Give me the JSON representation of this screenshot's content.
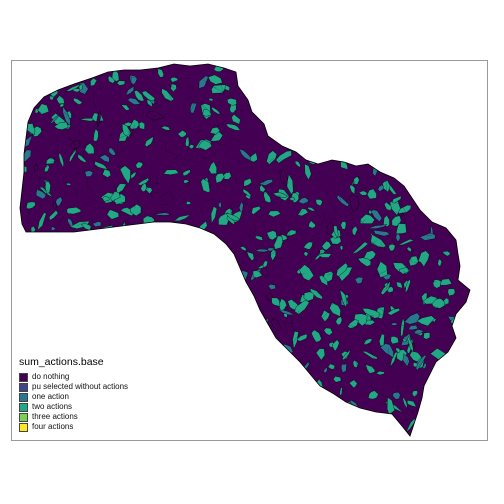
{
  "legend": {
    "title": "sum_actions.base",
    "items": [
      {
        "label": "do nothing",
        "color": "#440154"
      },
      {
        "label": "pu selected without actions",
        "color": "#414487"
      },
      {
        "label": "one action",
        "color": "#2A788E"
      },
      {
        "label": "two actions",
        "color": "#22A884"
      },
      {
        "label": "three actions",
        "color": "#7AD151"
      },
      {
        "label": "four actions",
        "color": "#FDE725"
      }
    ]
  },
  "colors": {
    "background": "#FFFFFF",
    "frame": "#9A9A9A",
    "outline": "#000000"
  }
}
